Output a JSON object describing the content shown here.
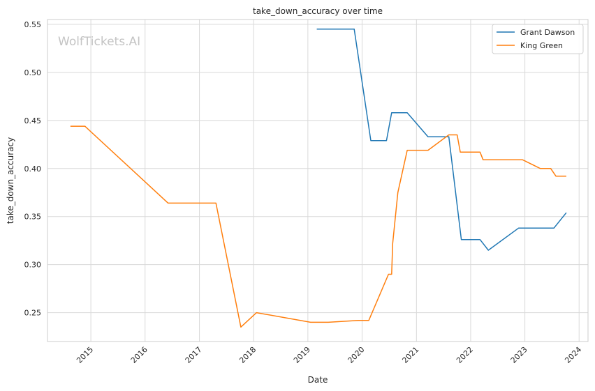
{
  "chart_data": {
    "type": "line",
    "title": "take_down_accuracy over time",
    "xlabel": "Date",
    "ylabel": "take_down_accuracy",
    "watermark": "WolfTickets.AI",
    "x_type": "date",
    "xlim": [
      "2014-03-15",
      "2024-03-01"
    ],
    "ylim": [
      0.22,
      0.555
    ],
    "x_ticks": [
      "2015",
      "2016",
      "2017",
      "2018",
      "2019",
      "2020",
      "2021",
      "2022",
      "2023",
      "2024"
    ],
    "y_ticks": [
      "0.25",
      "0.30",
      "0.35",
      "0.40",
      "0.45",
      "0.50",
      "0.55"
    ],
    "grid": true,
    "legend_position": "top-right",
    "colors": {
      "Grant Dawson": "#1f77b4",
      "King Green": "#ff7f0e"
    },
    "series": [
      {
        "name": "Grant Dawson",
        "points": [
          [
            "2019-03-02",
            0.545
          ],
          [
            "2019-11-09",
            0.545
          ],
          [
            "2020-02-29",
            0.429
          ],
          [
            "2020-06-13",
            0.429
          ],
          [
            "2020-07-18",
            0.458
          ],
          [
            "2020-10-31",
            0.458
          ],
          [
            "2021-03-20",
            0.433
          ],
          [
            "2021-08-07",
            0.433
          ],
          [
            "2021-10-30",
            0.326
          ],
          [
            "2022-03-05",
            0.326
          ],
          [
            "2022-04-30",
            0.315
          ],
          [
            "2022-11-19",
            0.338
          ],
          [
            "2023-06-10",
            0.338
          ],
          [
            "2023-07-15",
            0.338
          ],
          [
            "2023-10-07",
            0.354
          ]
        ]
      },
      {
        "name": "King Green",
        "points": [
          [
            "2014-08-16",
            0.444
          ],
          [
            "2014-11-22",
            0.444
          ],
          [
            "2016-06-04",
            0.364
          ],
          [
            "2017-04-22",
            0.364
          ],
          [
            "2017-10-07",
            0.235
          ],
          [
            "2018-01-20",
            0.25
          ],
          [
            "2019-01-19",
            0.24
          ],
          [
            "2019-05-18",
            0.24
          ],
          [
            "2019-12-07",
            0.242
          ],
          [
            "2020-02-15",
            0.242
          ],
          [
            "2020-06-27",
            0.29
          ],
          [
            "2020-07-18",
            0.29
          ],
          [
            "2020-07-25",
            0.322
          ],
          [
            "2020-08-29",
            0.375
          ],
          [
            "2020-10-31",
            0.419
          ],
          [
            "2021-03-20",
            0.419
          ],
          [
            "2021-08-07",
            0.435
          ],
          [
            "2021-10-02",
            0.435
          ],
          [
            "2021-10-23",
            0.417
          ],
          [
            "2022-03-05",
            0.417
          ],
          [
            "2022-03-26",
            0.409
          ],
          [
            "2022-12-17",
            0.409
          ],
          [
            "2023-04-15",
            0.4
          ],
          [
            "2023-06-24",
            0.4
          ],
          [
            "2023-07-29",
            0.392
          ],
          [
            "2023-10-07",
            0.392
          ]
        ]
      }
    ]
  }
}
